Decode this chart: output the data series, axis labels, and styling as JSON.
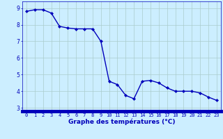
{
  "x": [
    0,
    1,
    2,
    3,
    4,
    5,
    6,
    7,
    8,
    9,
    10,
    11,
    12,
    13,
    14,
    15,
    16,
    17,
    18,
    19,
    20,
    21,
    22,
    23
  ],
  "y": [
    8.8,
    8.9,
    8.9,
    8.7,
    7.9,
    7.8,
    7.75,
    7.75,
    7.75,
    7.0,
    4.6,
    4.4,
    3.75,
    3.55,
    4.6,
    4.65,
    4.5,
    4.2,
    4.0,
    4.0,
    4.0,
    3.9,
    3.65,
    3.45
  ],
  "line_color": "#0000bb",
  "marker": "D",
  "marker_size": 2.2,
  "linewidth": 1.0,
  "background_color": "#cceeff",
  "grid_color": "#aacccc",
  "xlabel": "Graphe des températures (°C)",
  "xlim": [
    -0.5,
    23.5
  ],
  "ylim": [
    2.8,
    9.4
  ],
  "yticks": [
    3,
    4,
    5,
    6,
    7,
    8,
    9
  ],
  "xticks": [
    0,
    1,
    2,
    3,
    4,
    5,
    6,
    7,
    8,
    9,
    10,
    11,
    12,
    13,
    14,
    15,
    16,
    17,
    18,
    19,
    20,
    21,
    22,
    23
  ],
  "xtick_labels": [
    "0",
    "1",
    "2",
    "3",
    "4",
    "5",
    "6",
    "7",
    "8",
    "9",
    "10",
    "11",
    "12",
    "13",
    "14",
    "15",
    "16",
    "17",
    "18",
    "19",
    "20",
    "21",
    "22",
    "23"
  ],
  "xtick_fontsize": 5.0,
  "ytick_fontsize": 5.5,
  "xlabel_fontsize": 6.5,
  "text_color": "#0000bb",
  "bottom_bar_color": "#0000bb",
  "bottom_bar_height": 0.018
}
